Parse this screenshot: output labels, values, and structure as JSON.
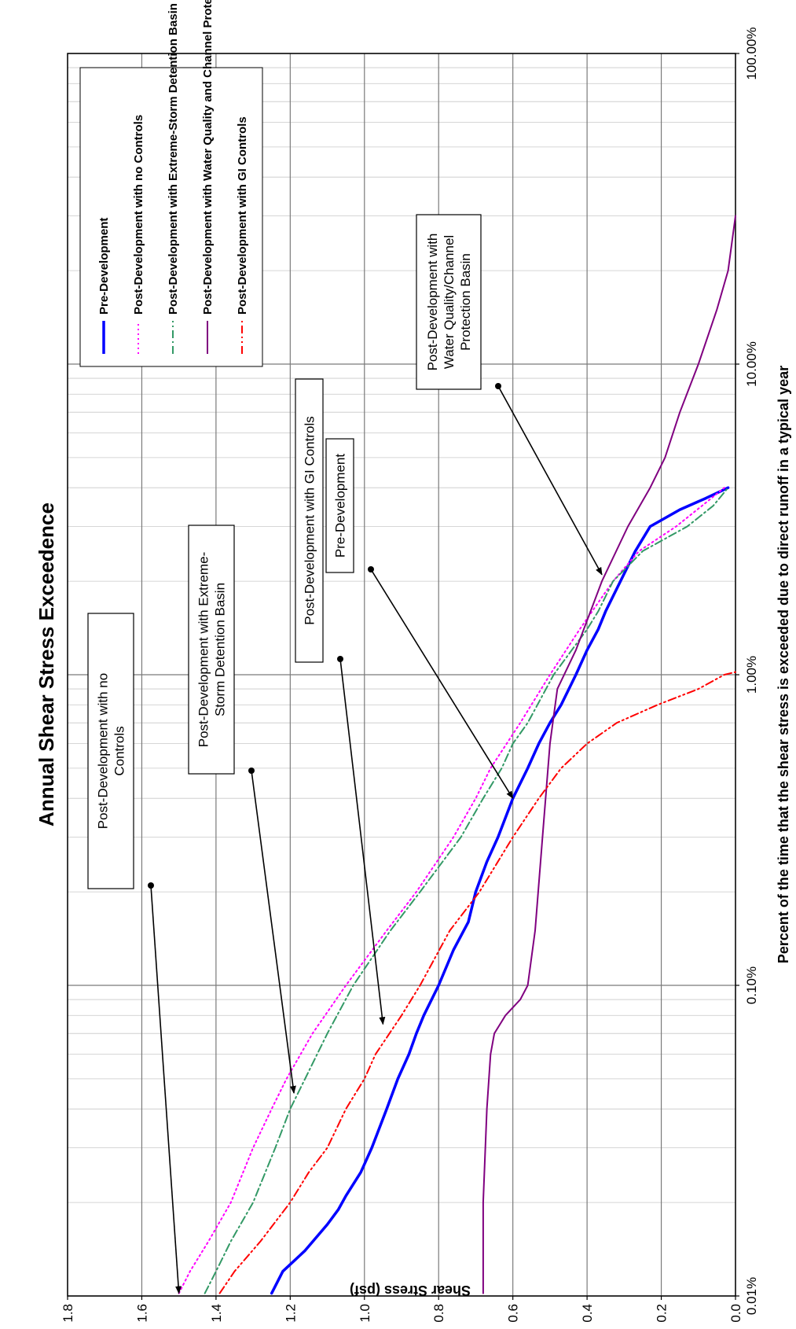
{
  "chart_data": {
    "type": "line",
    "title": "Annual Shear Stress Exceedence",
    "xlabel": "Percent of the time that the shear stress is exceeded due to direct runoff in a typical year",
    "ylabel": "Shear Stress (psf)",
    "x_scale": "log",
    "xlim": [
      0.01,
      100
    ],
    "ylim": [
      0,
      1.8
    ],
    "grid": true,
    "x_ticks": [
      {
        "value": 0.01,
        "label": "0.01%"
      },
      {
        "value": 0.1,
        "label": "0.10%"
      },
      {
        "value": 1,
        "label": "1.00%"
      },
      {
        "value": 10,
        "label": "10.00%"
      },
      {
        "value": 100,
        "label": "100.00%"
      }
    ],
    "y_ticks": [
      {
        "value": 0.0,
        "label": "0.0"
      },
      {
        "value": 0.2,
        "label": "0.2"
      },
      {
        "value": 0.4,
        "label": "0.4"
      },
      {
        "value": 0.6,
        "label": "0.6"
      },
      {
        "value": 0.8,
        "label": "0.8"
      },
      {
        "value": 1.0,
        "label": "1.0"
      },
      {
        "value": 1.2,
        "label": "1.2"
      },
      {
        "value": 1.4,
        "label": "1.4"
      },
      {
        "value": 1.6,
        "label": "1.6"
      },
      {
        "value": 1.8,
        "label": "1.8"
      }
    ],
    "legend_placement": "top-right",
    "series": [
      {
        "name": "Pre-Development",
        "color": "#0000ff",
        "dash": "solid",
        "width": 3.5,
        "points": [
          [
            0.0102,
            1.25
          ],
          [
            0.012,
            1.22
          ],
          [
            0.014,
            1.16
          ],
          [
            0.017,
            1.1
          ],
          [
            0.019,
            1.07
          ],
          [
            0.021,
            1.05
          ],
          [
            0.025,
            1.01
          ],
          [
            0.03,
            0.98
          ],
          [
            0.04,
            0.94
          ],
          [
            0.05,
            0.91
          ],
          [
            0.06,
            0.88
          ],
          [
            0.07,
            0.86
          ],
          [
            0.08,
            0.84
          ],
          [
            0.1,
            0.8
          ],
          [
            0.13,
            0.76
          ],
          [
            0.16,
            0.72
          ],
          [
            0.2,
            0.7
          ],
          [
            0.25,
            0.67
          ],
          [
            0.3,
            0.64
          ],
          [
            0.4,
            0.6
          ],
          [
            0.5,
            0.56
          ],
          [
            0.6,
            0.53
          ],
          [
            0.7,
            0.5
          ],
          [
            0.8,
            0.47
          ],
          [
            1.0,
            0.43
          ],
          [
            1.2,
            0.4
          ],
          [
            1.4,
            0.37
          ],
          [
            1.6,
            0.35
          ],
          [
            2.0,
            0.31
          ],
          [
            2.5,
            0.27
          ],
          [
            3.0,
            0.23
          ],
          [
            3.4,
            0.15
          ],
          [
            3.7,
            0.08
          ],
          [
            4.0,
            0.02
          ]
        ]
      },
      {
        "name": "Post-Development with no Controls",
        "color": "#ff00ff",
        "dash": "dot",
        "width": 2,
        "points": [
          [
            0.0102,
            1.5
          ],
          [
            0.012,
            1.47
          ],
          [
            0.015,
            1.42
          ],
          [
            0.02,
            1.36
          ],
          [
            0.03,
            1.3
          ],
          [
            0.04,
            1.25
          ],
          [
            0.05,
            1.21
          ],
          [
            0.07,
            1.14
          ],
          [
            0.1,
            1.05
          ],
          [
            0.15,
            0.94
          ],
          [
            0.2,
            0.86
          ],
          [
            0.3,
            0.76
          ],
          [
            0.4,
            0.7
          ],
          [
            0.5,
            0.66
          ],
          [
            0.7,
            0.58
          ],
          [
            1.0,
            0.5
          ],
          [
            1.4,
            0.42
          ],
          [
            2.0,
            0.33
          ],
          [
            2.5,
            0.26
          ],
          [
            3.0,
            0.16
          ],
          [
            3.5,
            0.09
          ],
          [
            4.0,
            0.03
          ]
        ]
      },
      {
        "name": "Post-Development with Extreme-Storm Detention Basin",
        "color": "#339966",
        "dash": "dashdot",
        "width": 2,
        "points": [
          [
            0.0102,
            1.43
          ],
          [
            0.012,
            1.4
          ],
          [
            0.015,
            1.36
          ],
          [
            0.02,
            1.3
          ],
          [
            0.03,
            1.24
          ],
          [
            0.04,
            1.2
          ],
          [
            0.05,
            1.16
          ],
          [
            0.07,
            1.1
          ],
          [
            0.1,
            1.03
          ],
          [
            0.15,
            0.93
          ],
          [
            0.2,
            0.85
          ],
          [
            0.3,
            0.74
          ],
          [
            0.4,
            0.68
          ],
          [
            0.5,
            0.63
          ],
          [
            0.6,
            0.6
          ],
          [
            0.7,
            0.56
          ],
          [
            1.0,
            0.49
          ],
          [
            1.4,
            0.4
          ],
          [
            1.6,
            0.37
          ],
          [
            2.0,
            0.33
          ],
          [
            2.5,
            0.25
          ],
          [
            3.0,
            0.13
          ],
          [
            3.5,
            0.06
          ],
          [
            4.0,
            0.02
          ]
        ]
      },
      {
        "name": "Post-Development with Water Quality and Channel Protection Basin",
        "color": "#800080",
        "dash": "solid",
        "width": 2,
        "points": [
          [
            0.0102,
            0.68
          ],
          [
            0.02,
            0.68
          ],
          [
            0.04,
            0.67
          ],
          [
            0.06,
            0.66
          ],
          [
            0.07,
            0.65
          ],
          [
            0.08,
            0.62
          ],
          [
            0.09,
            0.58
          ],
          [
            0.1,
            0.56
          ],
          [
            0.15,
            0.54
          ],
          [
            0.3,
            0.52
          ],
          [
            0.6,
            0.5
          ],
          [
            0.9,
            0.48
          ],
          [
            1.2,
            0.43
          ],
          [
            2.0,
            0.36
          ],
          [
            3.0,
            0.29
          ],
          [
            4.0,
            0.23
          ],
          [
            5.0,
            0.19
          ],
          [
            7.0,
            0.15
          ],
          [
            10.0,
            0.1
          ],
          [
            15.0,
            0.05
          ],
          [
            20.0,
            0.02
          ],
          [
            30.0,
            0.0
          ]
        ]
      },
      {
        "name": "Post-Development with GI Controls",
        "color": "#ff0000",
        "dash": "dashdotdot",
        "width": 2,
        "points": [
          [
            0.0102,
            1.39
          ],
          [
            0.012,
            1.35
          ],
          [
            0.015,
            1.28
          ],
          [
            0.02,
            1.2
          ],
          [
            0.025,
            1.15
          ],
          [
            0.03,
            1.1
          ],
          [
            0.04,
            1.05
          ],
          [
            0.05,
            1.0
          ],
          [
            0.06,
            0.97
          ],
          [
            0.08,
            0.9
          ],
          [
            0.1,
            0.85
          ],
          [
            0.15,
            0.77
          ],
          [
            0.2,
            0.69
          ],
          [
            0.3,
            0.6
          ],
          [
            0.4,
            0.53
          ],
          [
            0.5,
            0.47
          ],
          [
            0.6,
            0.4
          ],
          [
            0.7,
            0.32
          ],
          [
            0.8,
            0.21
          ],
          [
            0.9,
            0.1
          ],
          [
            1.0,
            0.03
          ],
          [
            1.02,
            0.0
          ]
        ]
      }
    ],
    "annotations": [
      {
        "lines": [
          "Post-Development with no",
          "Controls"
        ],
        "target": [
          0.0102,
          1.5
        ]
      },
      {
        "lines": [
          "Post-Development with Extreme-",
          "Storm Detention Basin"
        ],
        "target": [
          0.045,
          1.19
        ]
      },
      {
        "lines": [
          "Post-Development with GI Controls"
        ],
        "target": [
          0.075,
          0.95
        ]
      },
      {
        "lines": [
          "Pre-Development"
        ],
        "target": [
          0.4,
          0.6
        ]
      },
      {
        "lines": [
          "Post-Development with",
          "Water Quality/Channel",
          "Protection Basin"
        ],
        "target": [
          2.1,
          0.36
        ]
      }
    ]
  }
}
